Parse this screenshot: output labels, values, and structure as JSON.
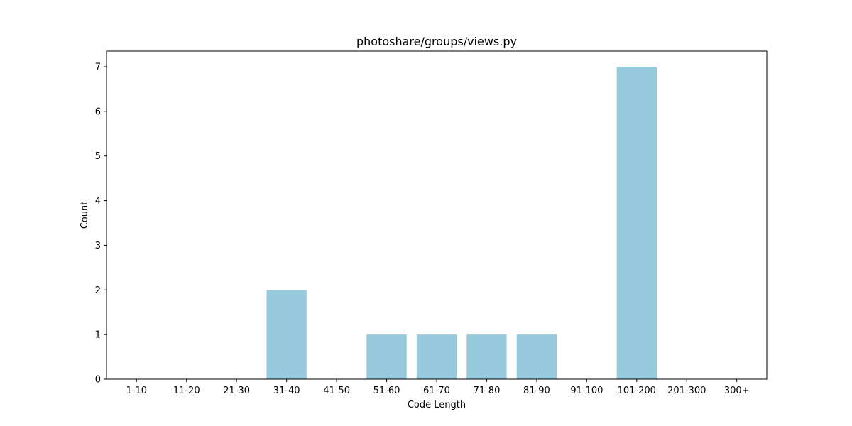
{
  "chart_data": {
    "type": "bar",
    "title": "photoshare/groups/views.py",
    "xlabel": "Code Length",
    "ylabel": "Count",
    "categories": [
      "1-10",
      "11-20",
      "21-30",
      "31-40",
      "41-50",
      "51-60",
      "61-70",
      "71-80",
      "81-90",
      "91-100",
      "101-200",
      "201-300",
      "300+"
    ],
    "values": [
      0,
      0,
      0,
      2,
      0,
      1,
      1,
      1,
      1,
      0,
      7,
      0,
      0
    ],
    "ylim": [
      0,
      7.35
    ],
    "yticks": [
      0,
      1,
      2,
      3,
      4,
      5,
      6,
      7
    ],
    "bar_color": "#96c9dc",
    "grid": false,
    "legend": "none"
  }
}
